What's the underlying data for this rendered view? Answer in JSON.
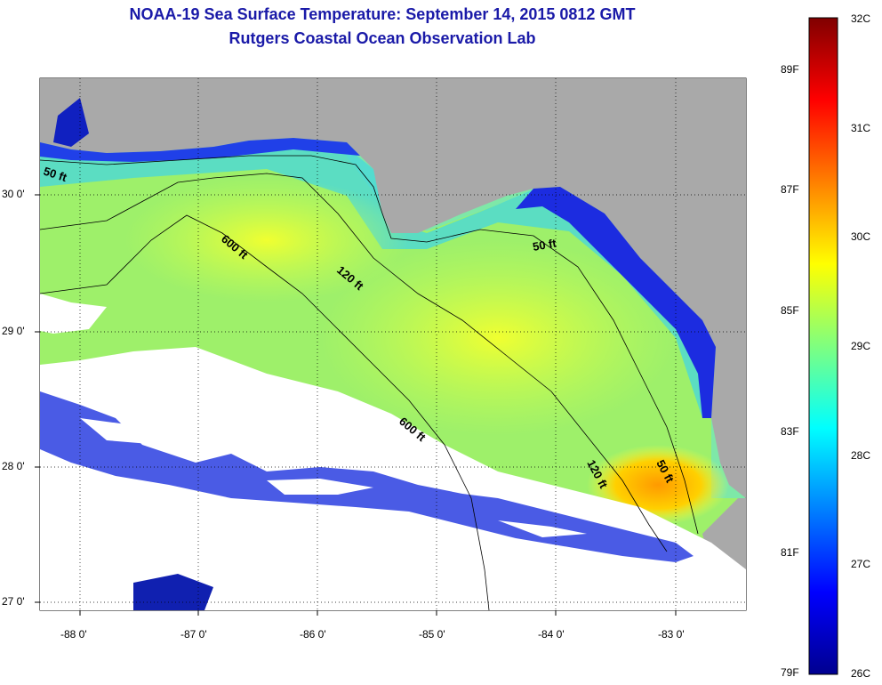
{
  "title": {
    "line1": "NOAA-19 Sea Surface Temperature:  September 14, 2015 0812 GMT",
    "line2": "Rutgers Coastal Ocean Observation Lab"
  },
  "map": {
    "lon_range": [
      -88.3,
      -82.4
    ],
    "lat_range": [
      26.95,
      30.85
    ],
    "lon_ticks": [
      "-88 0'",
      "-87 0'",
      "-86 0'",
      "-85 0'",
      "-84 0'",
      "-83 0'"
    ],
    "lat_ticks": [
      "30 0'",
      "29 0'",
      "28 0'",
      "27 0'"
    ],
    "contour_labels": [
      "50 ft",
      "600 ft",
      "120 ft",
      "50 ft",
      "600 ft",
      "120 ft",
      "50 ft"
    ],
    "land_color": "#a9a9a9",
    "cloud_color": "#ffffff"
  },
  "colorbar": {
    "celsius_labels": [
      "32C",
      "31C",
      "30C",
      "29C",
      "28C",
      "27C",
      "26C"
    ],
    "fahrenheit_labels": [
      "89F",
      "87F",
      "85F",
      "83F",
      "81F",
      "79F"
    ],
    "range_c": [
      26,
      32
    ]
  }
}
